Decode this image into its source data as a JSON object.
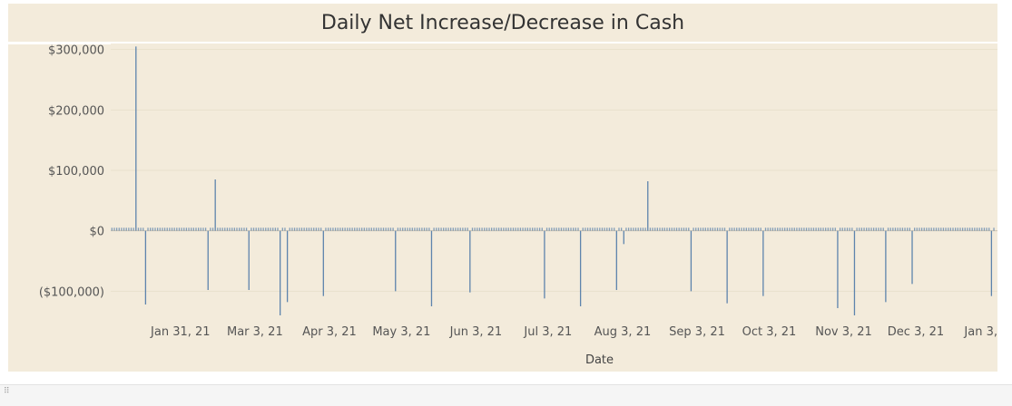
{
  "title": "Daily Net Increase/Decrease in Cash",
  "chart_data": {
    "type": "bar",
    "title": "Daily Net Increase/Decrease in Cash",
    "xlabel": "Date",
    "ylabel": "",
    "x_start": "2021-01-02",
    "x_end": "2022-01-06",
    "ylim": [
      -140000,
      310000
    ],
    "y_ticks": [
      300000,
      200000,
      100000,
      0,
      -100000
    ],
    "y_tick_labels": [
      "$300,000",
      "$200,000",
      "$100,000",
      "$0",
      "($100,000)"
    ],
    "x_ticks": [
      "2021-01-31",
      "2021-03-03",
      "2021-04-03",
      "2021-05-03",
      "2021-06-03",
      "2021-07-03",
      "2021-08-03",
      "2021-09-03",
      "2021-10-03",
      "2021-11-03",
      "2021-12-03",
      "2022-01-03"
    ],
    "x_tick_labels": [
      "Jan 31, 21",
      "Mar 3, 21",
      "Apr 3, 21",
      "May 3, 21",
      "Jun 3, 21",
      "Jul 3, 21",
      "Aug 3, 21",
      "Sep 3, 21",
      "Oct 3, 21",
      "Nov 3, 21",
      "Dec 3, 21",
      "Jan 3, 22"
    ],
    "grid": true,
    "color": "#4e79a7",
    "typical_daily_value": 5000,
    "large_days": [
      {
        "date": "2021-01-12",
        "value": 305000
      },
      {
        "date": "2021-01-16",
        "value": -122000
      },
      {
        "date": "2021-02-11",
        "value": -98000
      },
      {
        "date": "2021-02-14",
        "value": 85000
      },
      {
        "date": "2021-02-28",
        "value": -98000
      },
      {
        "date": "2021-03-13",
        "value": -140000
      },
      {
        "date": "2021-03-16",
        "value": -118000
      },
      {
        "date": "2021-03-31",
        "value": -108000
      },
      {
        "date": "2021-04-30",
        "value": -100000
      },
      {
        "date": "2021-05-15",
        "value": -125000
      },
      {
        "date": "2021-05-31",
        "value": -102000
      },
      {
        "date": "2021-07-01",
        "value": -112000
      },
      {
        "date": "2021-07-16",
        "value": -125000
      },
      {
        "date": "2021-07-31",
        "value": -98000
      },
      {
        "date": "2021-08-03",
        "value": -22000
      },
      {
        "date": "2021-08-13",
        "value": 82000
      },
      {
        "date": "2021-08-31",
        "value": -100000
      },
      {
        "date": "2021-09-15",
        "value": -120000
      },
      {
        "date": "2021-09-30",
        "value": -108000
      },
      {
        "date": "2021-10-31",
        "value": -128000
      },
      {
        "date": "2021-11-07",
        "value": -140000
      },
      {
        "date": "2021-11-20",
        "value": -118000
      },
      {
        "date": "2021-12-01",
        "value": -88000
      },
      {
        "date": "2022-01-03",
        "value": -108000
      }
    ]
  }
}
